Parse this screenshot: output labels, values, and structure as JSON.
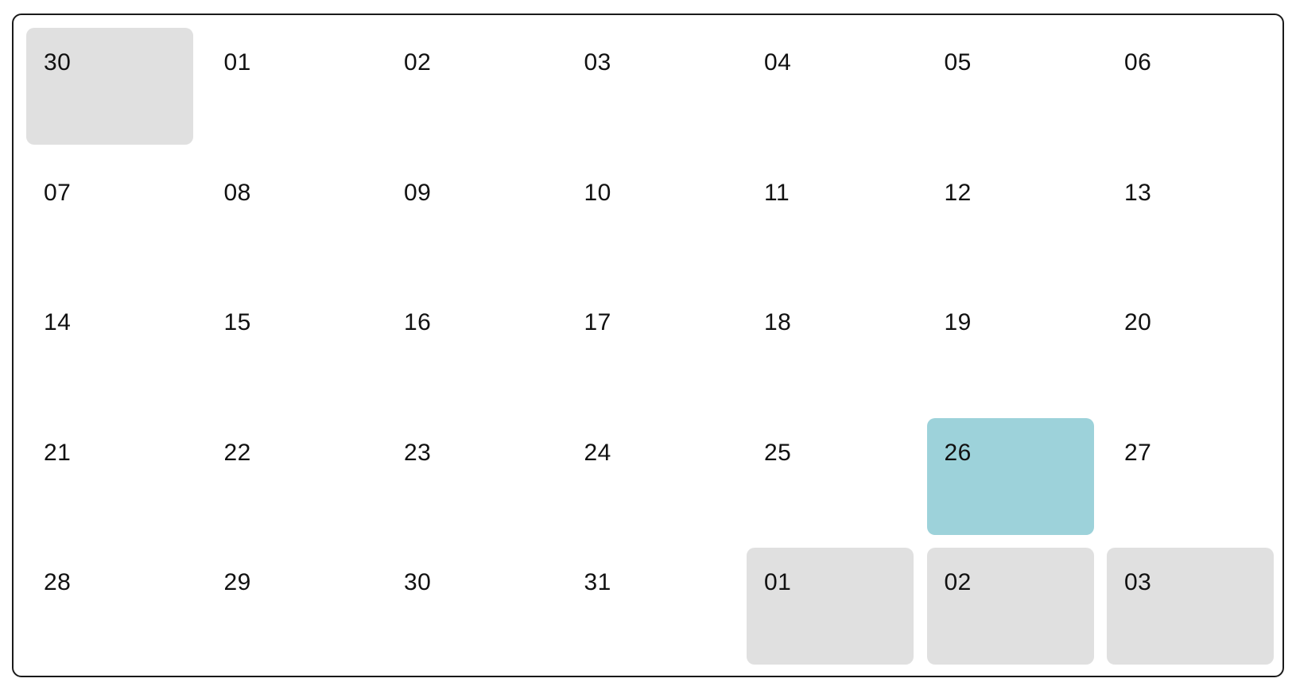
{
  "calendar": {
    "weeks": [
      [
        {
          "label": "30",
          "state": "other-month"
        },
        {
          "label": "01",
          "state": "current"
        },
        {
          "label": "02",
          "state": "current"
        },
        {
          "label": "03",
          "state": "current"
        },
        {
          "label": "04",
          "state": "current"
        },
        {
          "label": "05",
          "state": "current"
        },
        {
          "label": "06",
          "state": "current"
        }
      ],
      [
        {
          "label": "07",
          "state": "current"
        },
        {
          "label": "08",
          "state": "current"
        },
        {
          "label": "09",
          "state": "current"
        },
        {
          "label": "10",
          "state": "current"
        },
        {
          "label": "11",
          "state": "current"
        },
        {
          "label": "12",
          "state": "current"
        },
        {
          "label": "13",
          "state": "current"
        }
      ],
      [
        {
          "label": "14",
          "state": "current"
        },
        {
          "label": "15",
          "state": "current"
        },
        {
          "label": "16",
          "state": "current"
        },
        {
          "label": "17",
          "state": "current"
        },
        {
          "label": "18",
          "state": "current"
        },
        {
          "label": "19",
          "state": "current"
        },
        {
          "label": "20",
          "state": "current"
        }
      ],
      [
        {
          "label": "21",
          "state": "current"
        },
        {
          "label": "22",
          "state": "current"
        },
        {
          "label": "23",
          "state": "current"
        },
        {
          "label": "24",
          "state": "current"
        },
        {
          "label": "25",
          "state": "current"
        },
        {
          "label": "26",
          "state": "selected"
        },
        {
          "label": "27",
          "state": "current"
        }
      ],
      [
        {
          "label": "28",
          "state": "current"
        },
        {
          "label": "29",
          "state": "current"
        },
        {
          "label": "30",
          "state": "current"
        },
        {
          "label": "31",
          "state": "current"
        },
        {
          "label": "01",
          "state": "other-month"
        },
        {
          "label": "02",
          "state": "other-month"
        },
        {
          "label": "03",
          "state": "other-month"
        }
      ]
    ]
  },
  "colors": {
    "border": "#1a1a1a",
    "other_month_background": "#e0e0e0",
    "selected_background": "#9dd2da",
    "text": "#111111"
  }
}
